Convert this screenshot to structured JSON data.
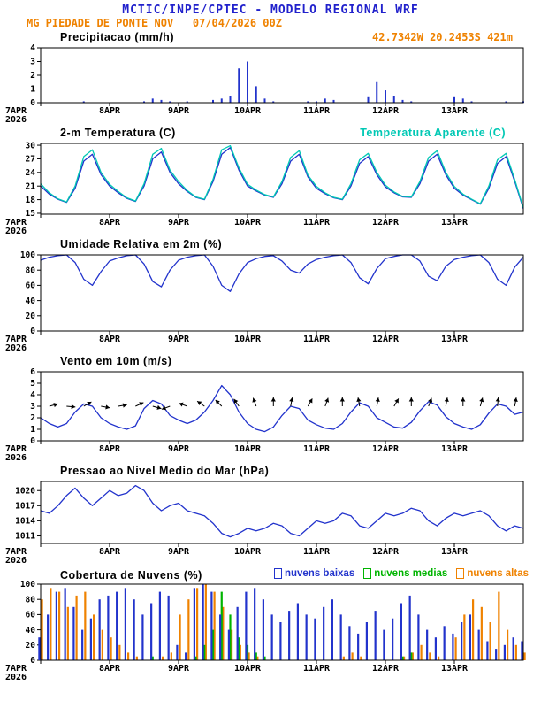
{
  "header": {
    "title": "MCTIC/INPE/CPTEC - MODELO REGIONAL WRF",
    "station_line": "MG PIEDADE DE PONTE NOV   07/04/2026 00Z",
    "location_line": "42.7342W 20.2453S 421m",
    "colors": {
      "title_blue": "#2121cc",
      "orange": "#ef8200"
    }
  },
  "time_axis": {
    "tick_labels": [
      "7APR",
      "8APR",
      "9APR",
      "10APR",
      "11APR",
      "12APR",
      "13APR"
    ],
    "year_label": "2026",
    "tick_hours": [
      0,
      24,
      48,
      72,
      96,
      120,
      144
    ],
    "total_hours": 168,
    "step_hours": 3
  },
  "chart_data": [
    {
      "id": "precip",
      "type": "bar",
      "title": "Precipitacao (mm/h)",
      "ylabel": "mm/h",
      "ylim": [
        0,
        4
      ],
      "yticks": [
        0,
        1,
        2,
        3,
        4
      ],
      "color": "#2233cc",
      "values": [
        0,
        0,
        0,
        0,
        0,
        0.1,
        0,
        0,
        0,
        0,
        0,
        0,
        0.1,
        0.3,
        0.2,
        0.1,
        0,
        0.1,
        0,
        0,
        0.2,
        0.3,
        0.5,
        2.5,
        3.0,
        1.2,
        0.3,
        0.1,
        0,
        0,
        0,
        0.1,
        0.1,
        0.3,
        0.2,
        0,
        0,
        0,
        0.4,
        1.5,
        0.9,
        0.5,
        0.2,
        0.1,
        0,
        0,
        0,
        0,
        0.4,
        0.3,
        0.1,
        0,
        0,
        0,
        0.1,
        0,
        0.1
      ]
    },
    {
      "id": "temp",
      "type": "line",
      "title": "2-m Temperatura (C)",
      "legend_label": "Temperatura Aparente (C)",
      "legend_color": "#00c8b4",
      "ylim": [
        14.8,
        30.4
      ],
      "yticks": [
        15,
        18,
        21,
        24,
        27,
        30
      ],
      "series": [
        {
          "name": "2-m Temperatura",
          "color": "#2233cc",
          "values": [
            21.0,
            19.2,
            18.1,
            17.4,
            20.5,
            26.5,
            28.0,
            23.5,
            21.0,
            19.5,
            18.3,
            17.6,
            21.0,
            27.0,
            28.5,
            24.0,
            21.5,
            19.8,
            18.5,
            18.0,
            22.0,
            28.0,
            29.5,
            24.5,
            21.0,
            19.9,
            19.0,
            18.5,
            21.5,
            26.5,
            28.0,
            23.0,
            20.5,
            19.3,
            18.4,
            18.0,
            21.0,
            26.0,
            27.5,
            23.5,
            20.8,
            19.5,
            18.6,
            18.5,
            21.5,
            26.5,
            28.0,
            23.5,
            20.5,
            19.0,
            18.0,
            17.0,
            20.5,
            26.0,
            27.5,
            22.0,
            16.0
          ]
        },
        {
          "name": "Temperatura Aparente",
          "color": "#00c8b4",
          "values": [
            21.5,
            19.5,
            18.2,
            17.5,
            21.0,
            27.5,
            29.0,
            24.0,
            21.4,
            19.8,
            18.4,
            17.7,
            21.5,
            28.0,
            29.3,
            24.5,
            22.0,
            20.0,
            18.6,
            18.1,
            22.5,
            29.0,
            29.9,
            25.0,
            21.4,
            20.1,
            19.1,
            18.6,
            22.0,
            27.3,
            28.8,
            23.4,
            20.9,
            19.5,
            18.5,
            18.1,
            21.5,
            26.8,
            28.2,
            24.0,
            21.2,
            19.7,
            18.7,
            18.6,
            22.0,
            27.3,
            28.8,
            24.0,
            20.9,
            19.2,
            18.1,
            17.1,
            21.0,
            26.8,
            28.2,
            22.4,
            16.2
          ]
        }
      ]
    },
    {
      "id": "rh",
      "type": "line",
      "title": "Umidade Relativa em 2m (%)",
      "ylim": [
        0,
        100
      ],
      "yticks": [
        0,
        20,
        40,
        60,
        80,
        100
      ],
      "series": [
        {
          "name": "Umidade Relativa",
          "color": "#2233cc",
          "values": [
            93,
            97,
            99,
            100,
            90,
            68,
            60,
            78,
            92,
            96,
            99,
            100,
            88,
            65,
            58,
            80,
            93,
            97,
            99,
            100,
            85,
            60,
            52,
            75,
            90,
            95,
            98,
            99,
            92,
            80,
            76,
            88,
            94,
            97,
            99,
            100,
            90,
            70,
            62,
            82,
            95,
            98,
            100,
            100,
            92,
            72,
            66,
            85,
            94,
            97,
            99,
            100,
            90,
            68,
            60,
            84,
            97
          ]
        }
      ]
    },
    {
      "id": "wind",
      "type": "line",
      "title": "Vento em 10m (m/s)",
      "ylim": [
        0,
        6
      ],
      "yticks": [
        0,
        1,
        2,
        3,
        4,
        5,
        6
      ],
      "series": [
        {
          "name": "Vento em 10m",
          "color": "#2233cc",
          "values": [
            2.0,
            1.5,
            1.2,
            1.5,
            2.5,
            3.2,
            3.0,
            2.0,
            1.5,
            1.2,
            1.0,
            1.3,
            2.8,
            3.5,
            3.2,
            2.2,
            1.8,
            1.5,
            1.8,
            2.5,
            3.5,
            4.8,
            4.0,
            2.5,
            1.5,
            1.0,
            0.8,
            1.2,
            2.2,
            3.0,
            2.8,
            1.8,
            1.4,
            1.1,
            1.0,
            1.5,
            2.5,
            3.3,
            3.0,
            2.0,
            1.6,
            1.2,
            1.1,
            1.6,
            2.6,
            3.4,
            3.1,
            2.1,
            1.5,
            1.2,
            1.0,
            1.4,
            2.4,
            3.2,
            3.0,
            2.3,
            2.5
          ]
        }
      ],
      "arrows": {
        "y_value": 3,
        "items": [
          [
            3,
            -15
          ],
          [
            9,
            5
          ],
          [
            15,
            -30
          ],
          [
            21,
            10
          ],
          [
            27,
            -10
          ],
          [
            33,
            -25
          ],
          [
            39,
            15
          ],
          [
            45,
            160
          ],
          [
            51,
            200
          ],
          [
            57,
            215
          ],
          [
            63,
            225
          ],
          [
            69,
            235
          ],
          [
            75,
            250
          ],
          [
            81,
            270
          ],
          [
            87,
            280
          ],
          [
            93,
            300
          ],
          [
            99,
            290
          ],
          [
            105,
            270
          ],
          [
            111,
            260
          ],
          [
            117,
            280
          ],
          [
            123,
            300
          ],
          [
            129,
            270
          ],
          [
            135,
            290
          ],
          [
            141,
            280
          ],
          [
            147,
            270
          ],
          [
            153,
            285
          ],
          [
            159,
            275
          ],
          [
            165,
            280
          ]
        ]
      }
    },
    {
      "id": "pres",
      "type": "line",
      "title": "Pressao ao Nivel Medio do Mar (hPa)",
      "ylim": [
        1009.5,
        1021.8
      ],
      "yticks": [
        1011,
        1014,
        1017,
        1020
      ],
      "series": [
        {
          "name": "Pressao ao Nivel Medio do Mar",
          "color": "#2233cc",
          "values": [
            1016.0,
            1015.5,
            1017.0,
            1019.0,
            1020.5,
            1018.5,
            1017.0,
            1018.5,
            1020.0,
            1019.0,
            1019.5,
            1021.0,
            1020.0,
            1017.5,
            1016.0,
            1017.0,
            1017.5,
            1016.0,
            1015.5,
            1015.0,
            1013.5,
            1011.5,
            1010.8,
            1011.5,
            1012.5,
            1012.0,
            1012.5,
            1013.5,
            1013.0,
            1011.5,
            1011.0,
            1012.5,
            1014.0,
            1013.5,
            1014.0,
            1015.5,
            1015.0,
            1013.0,
            1012.5,
            1014.0,
            1015.5,
            1015.0,
            1015.5,
            1016.5,
            1016.0,
            1014.0,
            1013.0,
            1014.5,
            1015.5,
            1015.0,
            1015.5,
            1016.0,
            1015.0,
            1013.0,
            1012.0,
            1013.0,
            1012.5
          ]
        }
      ]
    },
    {
      "id": "clouds",
      "type": "bar-multi",
      "title": "Cobertura de Nuvens (%)",
      "ylim": [
        0,
        100
      ],
      "yticks": [
        0,
        20,
        40,
        60,
        80,
        100
      ],
      "legend": [
        {
          "label": "nuvens baixas",
          "color": "#2233cc"
        },
        {
          "label": "nuvens medias",
          "color": "#00b400"
        },
        {
          "label": "nuvens altas",
          "color": "#ef8200"
        }
      ],
      "series": [
        {
          "name": "nuvens baixas",
          "color": "#2233cc",
          "values": [
            30,
            60,
            90,
            95,
            70,
            40,
            55,
            80,
            85,
            90,
            95,
            80,
            60,
            75,
            90,
            85,
            20,
            10,
            95,
            100,
            90,
            60,
            40,
            70,
            90,
            95,
            80,
            60,
            50,
            65,
            75,
            60,
            55,
            70,
            80,
            60,
            45,
            35,
            50,
            65,
            40,
            55,
            75,
            85,
            60,
            40,
            30,
            45,
            35,
            50,
            60,
            40,
            25,
            15,
            20,
            30,
            25
          ]
        },
        {
          "name": "nuvens medias",
          "color": "#00b400",
          "values": [
            0,
            0,
            0,
            0,
            0,
            0,
            0,
            0,
            0,
            0,
            0,
            0,
            0,
            5,
            0,
            0,
            0,
            0,
            5,
            20,
            40,
            90,
            60,
            30,
            20,
            10,
            5,
            0,
            0,
            0,
            0,
            0,
            0,
            0,
            0,
            0,
            0,
            0,
            0,
            0,
            0,
            0,
            5,
            10,
            0,
            0,
            0,
            0,
            0,
            0,
            0,
            0,
            0,
            0,
            0,
            0,
            0
          ]
        },
        {
          "name": "nuvens altas",
          "color": "#ef8200",
          "values": [
            80,
            95,
            90,
            70,
            85,
            90,
            60,
            40,
            30,
            20,
            10,
            5,
            0,
            0,
            5,
            10,
            60,
            80,
            95,
            100,
            90,
            70,
            40,
            20,
            10,
            5,
            0,
            0,
            0,
            0,
            0,
            0,
            0,
            0,
            0,
            5,
            10,
            5,
            0,
            0,
            0,
            0,
            5,
            10,
            20,
            10,
            5,
            0,
            30,
            60,
            80,
            70,
            50,
            90,
            40,
            20,
            10
          ]
        }
      ]
    }
  ]
}
